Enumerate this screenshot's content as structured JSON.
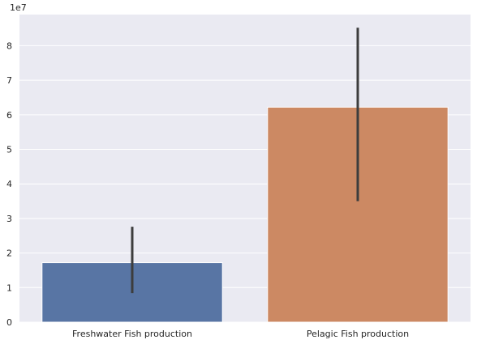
{
  "chart_data": {
    "type": "bar",
    "categories": [
      "Freshwater Fish production",
      "Pelagic Fish production"
    ],
    "values": [
      17200000,
      62200000
    ],
    "error_low": [
      8400000,
      35000000
    ],
    "error_high": [
      27600000,
      85200000
    ],
    "ylim": [
      0,
      89000000
    ],
    "yticks": [
      0,
      10000000,
      20000000,
      30000000,
      40000000,
      50000000,
      60000000,
      70000000,
      80000000
    ],
    "ytick_labels": [
      "0",
      "1",
      "2",
      "3",
      "4",
      "5",
      "6",
      "7",
      "8"
    ],
    "offset_label": "1e7",
    "title": "",
    "xlabel": "",
    "ylabel": "",
    "grid": true,
    "colors": {
      "background": "#eaeaf2",
      "grid": "#ffffff",
      "bars": [
        "#5875a4",
        "#cc8963"
      ],
      "error_bar": "#3d3d3d",
      "text": "#262626"
    }
  }
}
